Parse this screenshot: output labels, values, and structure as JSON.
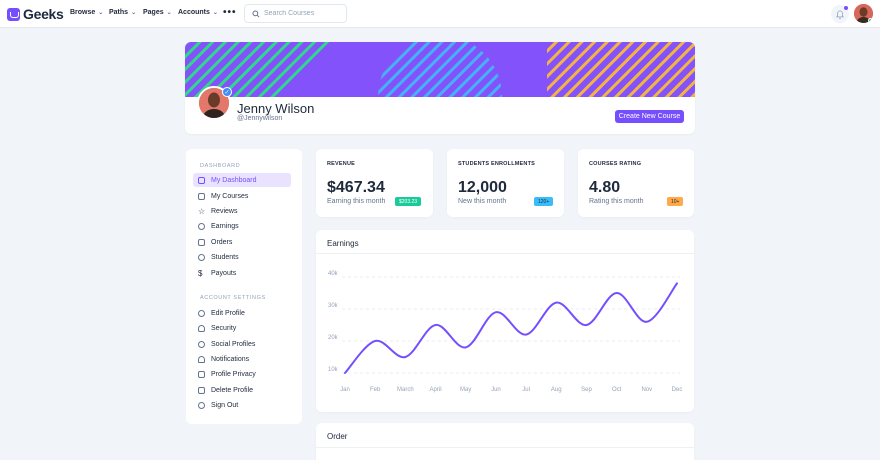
{
  "brand": {
    "name": "Geeks",
    "color": "#754ffe"
  },
  "nav": {
    "items": [
      "Browse",
      "Paths",
      "Pages",
      "Accounts"
    ],
    "more": "•••"
  },
  "search": {
    "placeholder": "Search Courses"
  },
  "profile": {
    "name": "Jenny Wilson",
    "handle": "@Jennywilson",
    "create_button": "Create New Course",
    "verified": true
  },
  "sidebar": {
    "dashboard_heading": "DASHBOARD",
    "dashboard_items": [
      {
        "label": "My Dashboard",
        "icon": "home-icon",
        "active": true
      },
      {
        "label": "My Courses",
        "icon": "book-icon"
      },
      {
        "label": "Reviews",
        "icon": "star-icon"
      },
      {
        "label": "Earnings",
        "icon": "pie-chart-icon"
      },
      {
        "label": "Orders",
        "icon": "order-icon"
      },
      {
        "label": "Students",
        "icon": "users-icon"
      },
      {
        "label": "Payouts",
        "icon": "dollar-icon"
      }
    ],
    "settings_heading": "ACCOUNT SETTINGS",
    "settings_items": [
      {
        "label": "Edit Profile",
        "icon": "settings-icon"
      },
      {
        "label": "Security",
        "icon": "user-icon"
      },
      {
        "label": "Social Profiles",
        "icon": "refresh-icon"
      },
      {
        "label": "Notifications",
        "icon": "bell-icon"
      },
      {
        "label": "Profile Privacy",
        "icon": "lock-icon"
      },
      {
        "label": "Delete Profile",
        "icon": "trash-icon"
      },
      {
        "label": "Sign Out",
        "icon": "power-icon"
      }
    ]
  },
  "stats": [
    {
      "label": "REVENUE",
      "value": "$467.34",
      "sub": "Earning this month",
      "badge": "$203.23",
      "badge_color": "#19cb98",
      "badge_text_color": "#ffffff"
    },
    {
      "label": "STUDENTS ENROLLMENTS",
      "value": "12,000",
      "sub": "New this month",
      "badge": "120+",
      "badge_color": "#38bdf8",
      "badge_text_color": "#1e293b"
    },
    {
      "label": "COURSES RATING",
      "value": "4.80",
      "sub": "Rating this month",
      "badge": "10+",
      "badge_color": "#ffaa46",
      "badge_text_color": "#1e293b"
    }
  ],
  "earnings_card": {
    "title": "Earnings"
  },
  "order_card": {
    "title": "Order"
  },
  "chart_data": {
    "type": "line",
    "title": "Earnings",
    "categories": [
      "Jan",
      "Feb",
      "March",
      "April",
      "May",
      "Jun",
      "Jul",
      "Aug",
      "Sep",
      "Oct",
      "Nov",
      "Dec"
    ],
    "y_ticks": [
      "40k",
      "30k",
      "20k",
      "10k"
    ],
    "ylim": [
      10000,
      40000
    ],
    "series": [
      {
        "values": [
          10000,
          20000,
          15000,
          25000,
          18000,
          29000,
          22000,
          32000,
          25000,
          35000,
          26000,
          38000
        ]
      }
    ],
    "grid": true,
    "color": "#754ffe"
  }
}
